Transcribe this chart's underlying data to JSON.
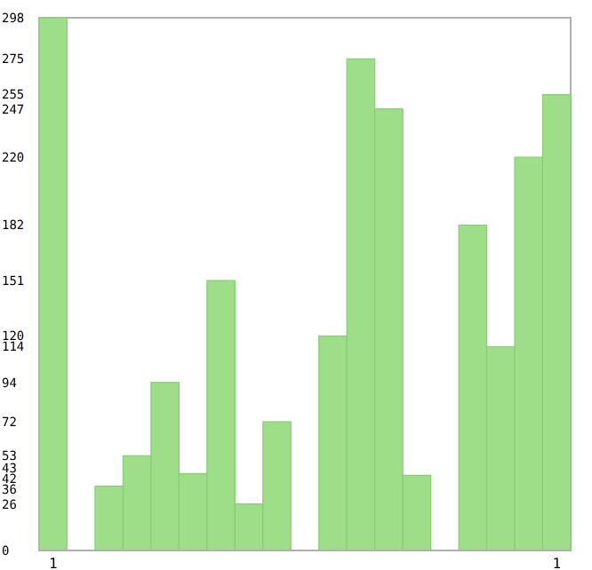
{
  "chart_data": {
    "type": "bar",
    "categories": [
      "1",
      null,
      null,
      null,
      null,
      null,
      null,
      null,
      null,
      null,
      null,
      null,
      null,
      null,
      null,
      null,
      null,
      null,
      "1"
    ],
    "values": [
      298,
      0,
      36,
      53,
      94,
      43,
      151,
      26,
      72,
      0,
      120,
      275,
      247,
      42,
      0,
      182,
      114,
      220,
      255
    ],
    "color": "#9ede88",
    "ylim": [
      0,
      298
    ],
    "yticks": [
      0,
      26,
      36,
      42,
      43,
      53,
      72,
      94,
      114,
      120,
      151,
      182,
      220,
      247,
      255,
      275,
      298
    ],
    "grid": false
  }
}
